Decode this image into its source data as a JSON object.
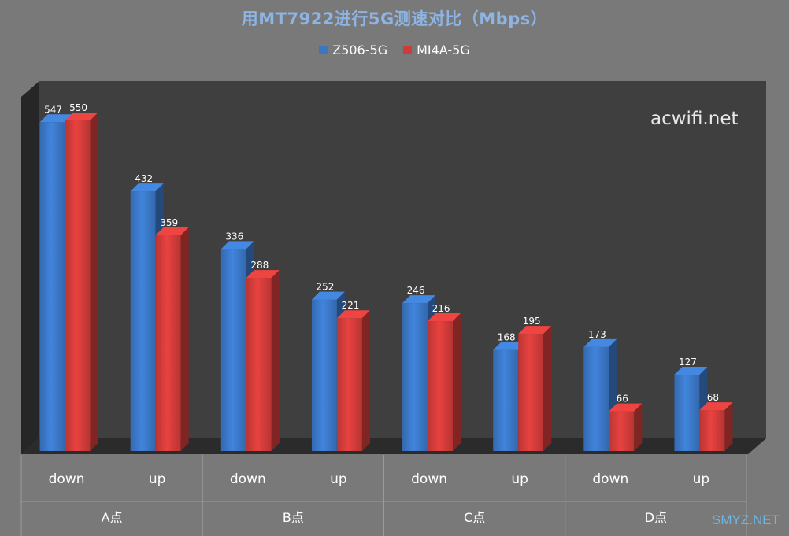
{
  "chart_data": {
    "type": "bar",
    "title": "用MT7922进行5G测速对比（Mbps）",
    "categories": [
      "down",
      "up",
      "down",
      "up",
      "down",
      "up",
      "down",
      "up"
    ],
    "groups": [
      "A点",
      "B点",
      "C点",
      "D点"
    ],
    "series": [
      {
        "name": "Z506-5G",
        "color": "#3a76c4",
        "values": [
          547,
          432,
          336,
          252,
          246,
          168,
          173,
          127
        ]
      },
      {
        "name": "MI4A-5G",
        "color": "#cf3b39",
        "values": [
          550,
          359,
          288,
          221,
          216,
          195,
          66,
          68
        ]
      }
    ],
    "ylim": [
      0,
      550
    ],
    "grid": false,
    "legend_position": "top"
  },
  "watermarks": [
    "acwifi.net",
    "SMYZ.NET"
  ]
}
